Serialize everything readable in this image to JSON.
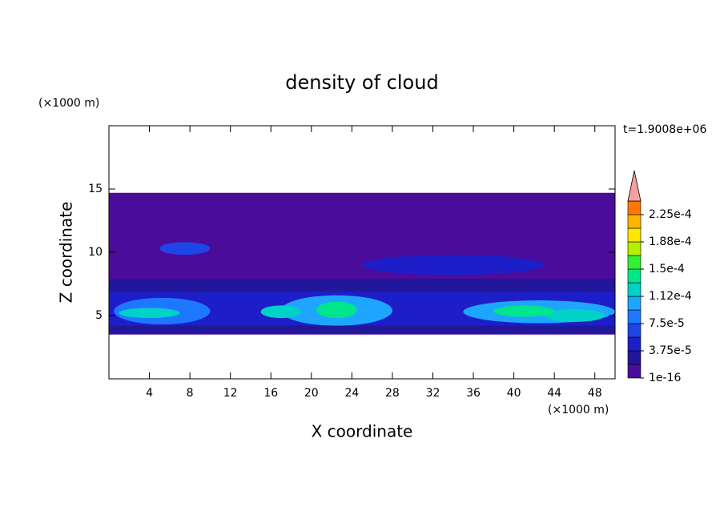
{
  "chart_data": {
    "type": "contour",
    "title": "density of cloud",
    "x_label": "X coordinate",
    "y_label": "Z coordinate",
    "x_unit": "(×1000 m)",
    "y_unit": "(×1000 m)",
    "annotation": "t=1.9008e+06",
    "xlim": [
      0,
      50
    ],
    "ylim": [
      0,
      20
    ],
    "xticks": [
      4,
      8,
      12,
      16,
      20,
      24,
      28,
      32,
      36,
      40,
      44,
      48
    ],
    "yticks": [
      5,
      10,
      15
    ],
    "levels": [
      1e-16,
      1.875e-05,
      3.75e-05,
      5.625e-05,
      7.5e-05,
      9.375e-05,
      0.0001125,
      0.00013125,
      0.00015,
      0.00016875,
      0.0001875,
      0.00020625,
      0.000225,
      0.00024375
    ],
    "colors": [
      "#4b0c9b",
      "#22169a",
      "#1e1ec8",
      "#1e46e6",
      "#1e78ff",
      "#1ea5ff",
      "#00d2c8",
      "#00e68c",
      "#32f032",
      "#b4f000",
      "#ffe600",
      "#ffb400",
      "#ff7800"
    ],
    "extend_color": "#f4a0a0",
    "colorbar_ticks": [
      1e-16,
      {
        "value": 3.75e-05,
        "label": "3.75e-5"
      },
      {
        "value": 7.5e-05,
        "label": "7.5e-5"
      },
      {
        "value": 0.0001125,
        "label": "1.12e-4"
      },
      {
        "value": 0.00015,
        "label": "1.5e-4"
      },
      {
        "value": 0.0001875,
        "label": "1.88e-4"
      },
      {
        "value": 0.000225,
        "label": "2.25e-4"
      }
    ],
    "features": [
      {
        "shape": "rect",
        "x": [
          0,
          50
        ],
        "z": [
          3.5,
          14.7
        ],
        "value": 1e-16
      },
      {
        "shape": "rect",
        "x": [
          0,
          50
        ],
        "z": [
          3.6,
          7.9
        ],
        "value": 1.875e-05
      },
      {
        "shape": "rect",
        "x": [
          0,
          50
        ],
        "z": [
          4.2,
          6.9
        ],
        "value": 3.75e-05
      },
      {
        "shape": "ellipse",
        "x": [
          25,
          43
        ],
        "z": [
          8.2,
          9.8
        ],
        "value": 3.75e-05
      },
      {
        "shape": "ellipse",
        "x": [
          5,
          10
        ],
        "z": [
          9.8,
          10.8
        ],
        "value": 5.625e-05
      },
      {
        "shape": "ellipse",
        "x": [
          0.5,
          10
        ],
        "z": [
          4.3,
          6.4
        ],
        "value": 7.5e-05
      },
      {
        "shape": "ellipse",
        "x": [
          17,
          28
        ],
        "z": [
          4.2,
          6.6
        ],
        "value": 9.375e-05
      },
      {
        "shape": "ellipse",
        "x": [
          35,
          50
        ],
        "z": [
          4.4,
          6.2
        ],
        "value": 9.375e-05
      },
      {
        "shape": "ellipse",
        "x": [
          1,
          7
        ],
        "z": [
          4.8,
          5.6
        ],
        "value": 0.0001125
      },
      {
        "shape": "ellipse",
        "x": [
          15,
          19
        ],
        "z": [
          4.8,
          5.8
        ],
        "value": 0.0001125
      },
      {
        "shape": "ellipse",
        "x": [
          43,
          49
        ],
        "z": [
          4.5,
          5.5
        ],
        "value": 0.0001125
      },
      {
        "shape": "ellipse",
        "x": [
          20.5,
          24.5
        ],
        "z": [
          4.8,
          6.1
        ],
        "value": 0.00013125
      },
      {
        "shape": "ellipse",
        "x": [
          38,
          44
        ],
        "z": [
          4.9,
          5.8
        ],
        "value": 0.00013125
      }
    ]
  }
}
